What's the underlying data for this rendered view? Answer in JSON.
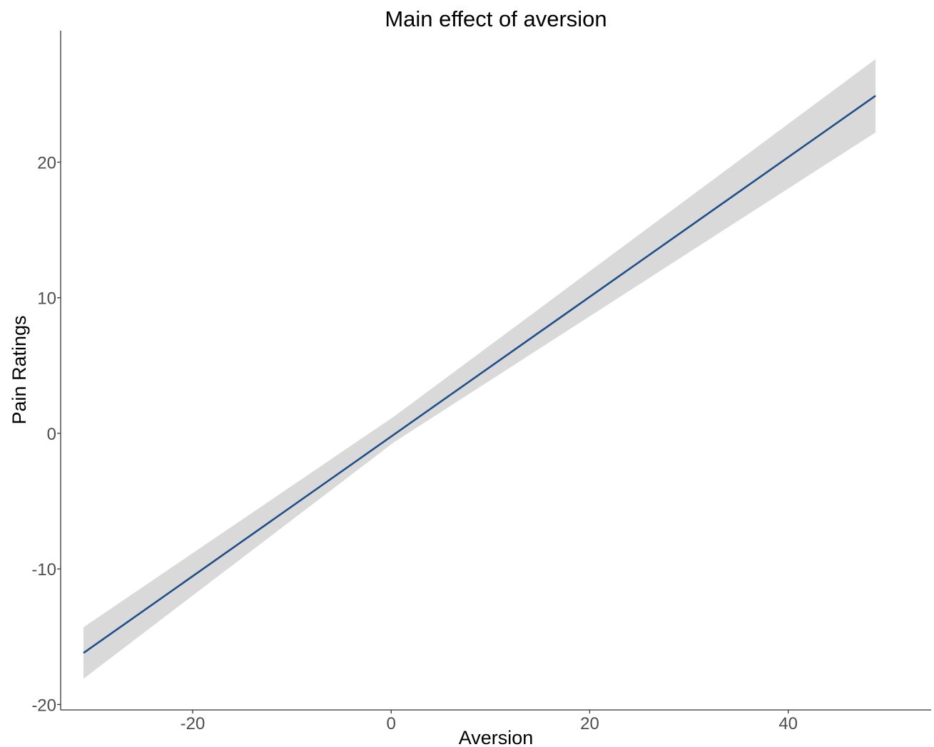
{
  "chart_data": {
    "type": "line",
    "title": "Main effect of aversion",
    "xlabel": "Aversion",
    "ylabel": "Pain Ratings",
    "xlim": [
      -33.3,
      54.4
    ],
    "ylim": [
      -20.4,
      29.7
    ],
    "x_ticks": [
      -20,
      0,
      20,
      40
    ],
    "y_ticks": [
      -20,
      -10,
      0,
      10,
      20
    ],
    "grid": false,
    "series": [
      {
        "x": [
          -31,
          48.8
        ],
        "y": [
          -16.2,
          24.9
        ],
        "ci_lower": [
          -18.1,
          22.2
        ],
        "ci_upper": [
          -14.3,
          27.6
        ],
        "ci_center": [
          0.3,
          0.3
        ],
        "ci_center_half_width": 0.95,
        "color": "#1f4e89",
        "band_color": "#d9d9d9"
      }
    ]
  }
}
